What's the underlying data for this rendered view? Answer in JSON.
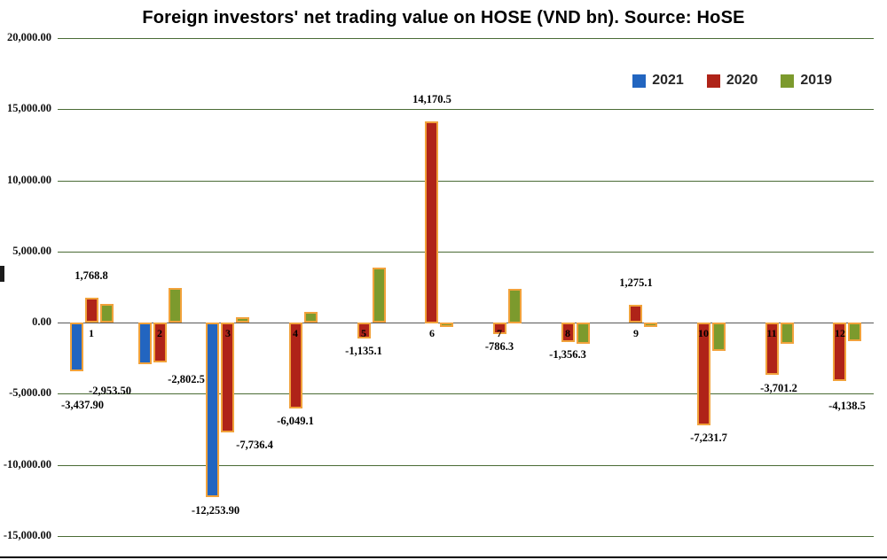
{
  "chart_data": {
    "type": "bar",
    "title": "Foreign investors' net trading value on HOSE (VND bn). Source: HoSE",
    "categories": [
      "1",
      "2",
      "3",
      "4",
      "5",
      "6",
      "7",
      "8",
      "9",
      "10",
      "11",
      "12"
    ],
    "series": [
      {
        "name": "2021",
        "color": "#2265c0",
        "values": [
          -3437.9,
          -2953.5,
          -12253.9,
          null,
          null,
          null,
          null,
          null,
          null,
          null,
          null,
          null
        ],
        "labels": [
          "-3,437.90",
          "-2,953.50",
          "-12,253.90",
          null,
          null,
          null,
          null,
          null,
          null,
          null,
          null,
          null
        ]
      },
      {
        "name": "2020",
        "color": "#af2318",
        "values": [
          1768.8,
          -2802.5,
          -7736.4,
          -6049.1,
          -1135.1,
          14170.5,
          -786.3,
          -1356.3,
          1275.1,
          -7231.7,
          -3701.2,
          -4138.5
        ],
        "labels": [
          "1,768.8",
          "-2,802.5",
          "-7,736.4",
          "-6,049.1",
          "-1,135.1",
          "14,170.5",
          "-786.3",
          "-1,356.3",
          "1,275.1",
          "-7,231.7",
          "-3,701.2",
          "-4,138.5"
        ]
      },
      {
        "name": "2019",
        "color": "#7c9a2d",
        "values": [
          1300,
          2450,
          400,
          750,
          3850,
          -300,
          2400,
          -1500,
          -300,
          -2000,
          -1500,
          -1300
        ],
        "labels": [
          null,
          null,
          null,
          null,
          null,
          null,
          null,
          null,
          null,
          null,
          null,
          null
        ]
      }
    ],
    "y_ticks": [
      "20,000.00",
      "15,000.00",
      "10,000.00",
      "5,000.00",
      "0.00",
      "-5,000.00",
      "-10,000.00",
      "-15,000.00"
    ],
    "y_tick_values": [
      20000,
      15000,
      10000,
      5000,
      0,
      -5000,
      -10000,
      -15000
    ],
    "ylim": [
      -15000,
      20000
    ],
    "grid": true,
    "legend_position": "top-right",
    "bar_outline_color": "#f1a23b",
    "gridline_color": "#4a6b35"
  }
}
